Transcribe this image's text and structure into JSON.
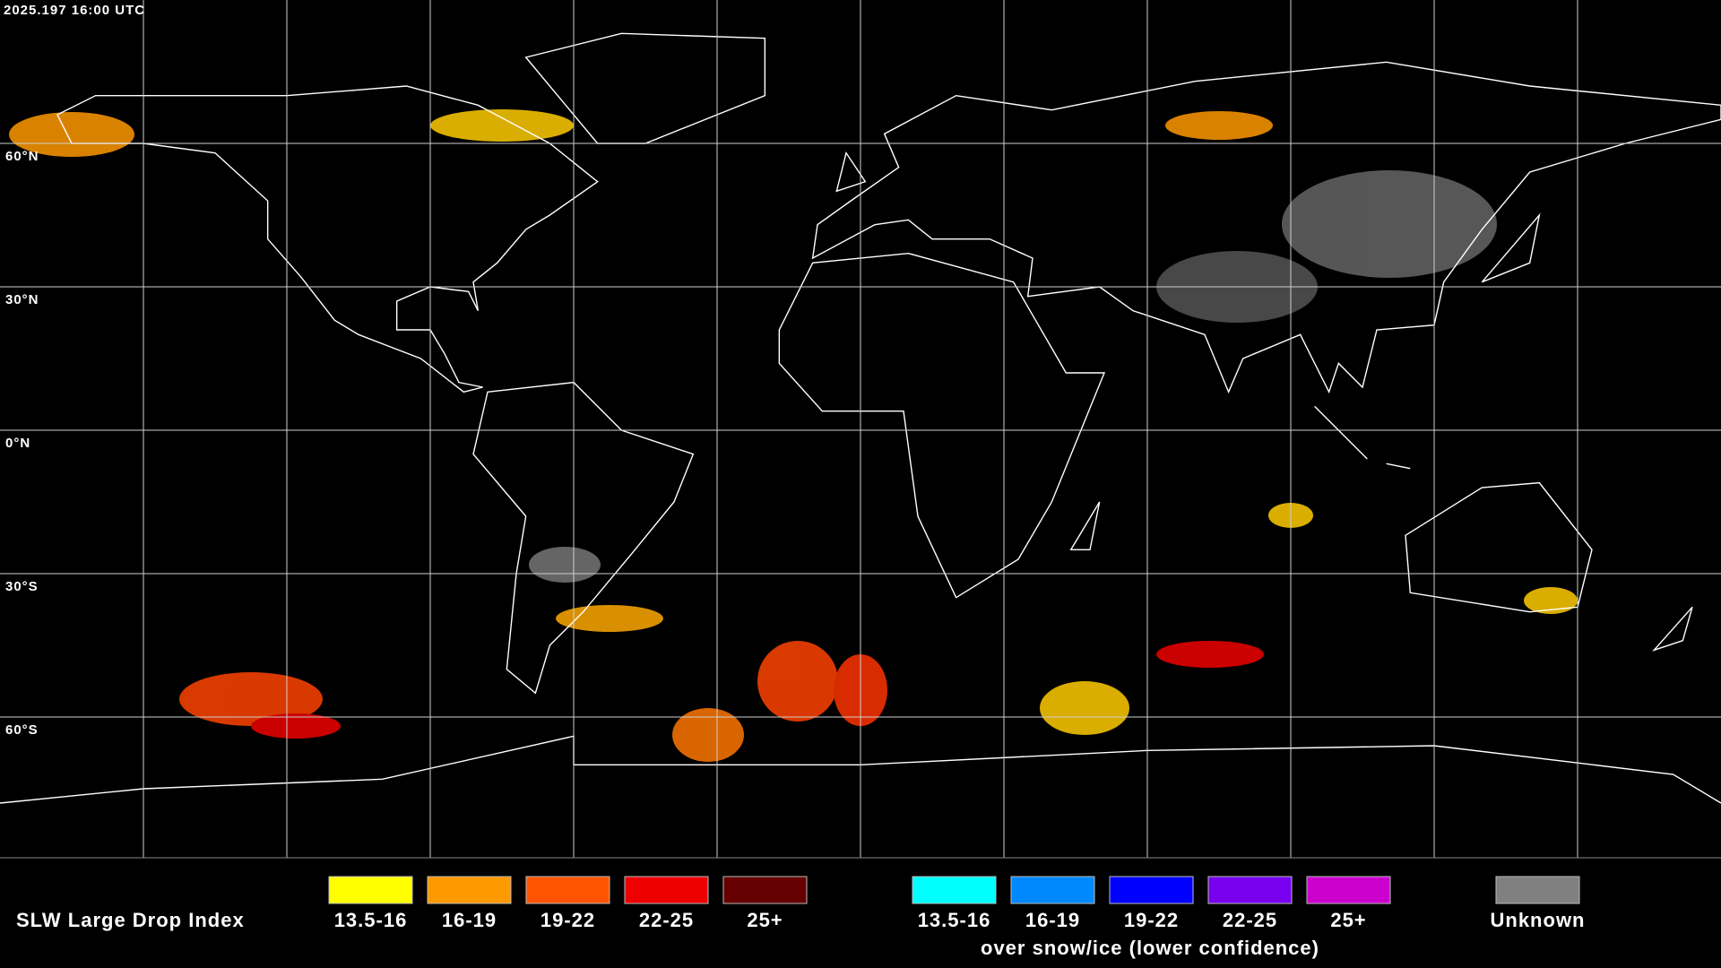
{
  "timestamp": "2025.197 16:00 UTC",
  "latitude_labels": [
    "60°N",
    "30°N",
    "0°N",
    "30°S",
    "60°S"
  ],
  "legend": {
    "title": "SLW Large Drop Index",
    "items": [
      {
        "label": "13.5-16",
        "color": "#ffff00"
      },
      {
        "label": "16-19",
        "color": "#ff9900"
      },
      {
        "label": "19-22",
        "color": "#ff5500"
      },
      {
        "label": "22-25",
        "color": "#ee0000"
      },
      {
        "label": "25+",
        "color": "#660000"
      }
    ],
    "ice_items": [
      {
        "label": "13.5-16",
        "color": "#00ffff"
      },
      {
        "label": "16-19",
        "color": "#0088ff"
      },
      {
        "label": "19-22",
        "color": "#0000ff"
      },
      {
        "label": "22-25",
        "color": "#7700ee"
      },
      {
        "label": "25+",
        "color": "#cc00cc"
      }
    ],
    "ice_note": "over snow/ice (lower confidence)",
    "unknown": {
      "label": "Unknown",
      "color": "#808080"
    }
  }
}
